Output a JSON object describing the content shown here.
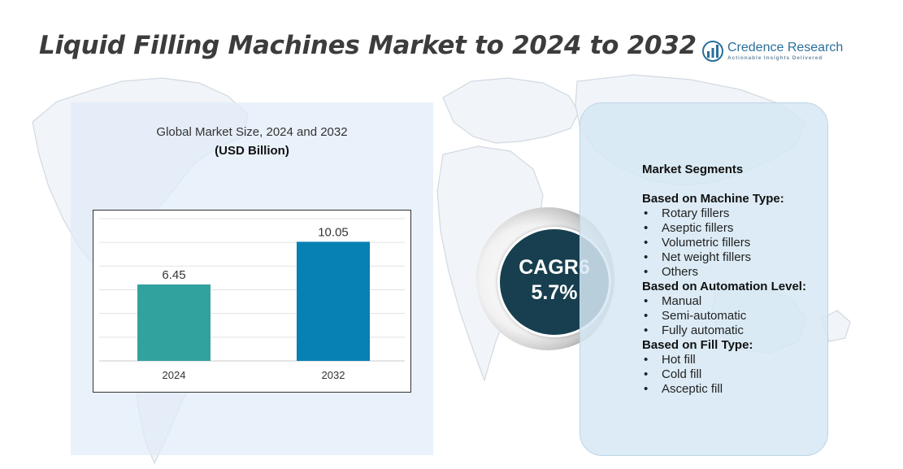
{
  "title": "Liquid Filling Machines Market to 2024 to 2032",
  "logo": {
    "name": "Credence Research",
    "tagline": "Actionable Insights Delivered",
    "icon": "bar-chart-globe-icon"
  },
  "chart_data": {
    "type": "bar",
    "title": "Global Market Size,  2024 and 2032",
    "subtitle": "(USD Billion)",
    "categories": [
      "2024",
      "2032"
    ],
    "values": [
      6.45,
      10.05
    ],
    "value_labels": [
      "6.45",
      "10.05"
    ],
    "ylim": [
      0,
      12
    ],
    "grid": true,
    "colors": [
      "#32a29f",
      "#0780b4"
    ]
  },
  "cagr": {
    "label": "CAGR6",
    "value": "5.7%"
  },
  "segments": {
    "title": "Market Segments",
    "groups": [
      {
        "heading": "Based on Machine Type:",
        "items": [
          "Rotary fillers",
          "Aseptic fillers",
          "Volumetric fillers",
          "Net weight fillers",
          "Others"
        ]
      },
      {
        "heading": "Based on Automation Level:",
        "items": [
          "Manual",
          "Semi-automatic",
          "Fully automatic"
        ]
      },
      {
        "heading": "Based on Fill Type:",
        "items": [
          "Hot fill",
          "Cold fill",
          "Asceptic fill"
        ]
      }
    ]
  },
  "colors": {
    "title": "#3c3c3c",
    "cagr_circle": "#173f4f",
    "panel_bg": "#e1ecf8",
    "segment_bg": "#d6e7f3"
  }
}
